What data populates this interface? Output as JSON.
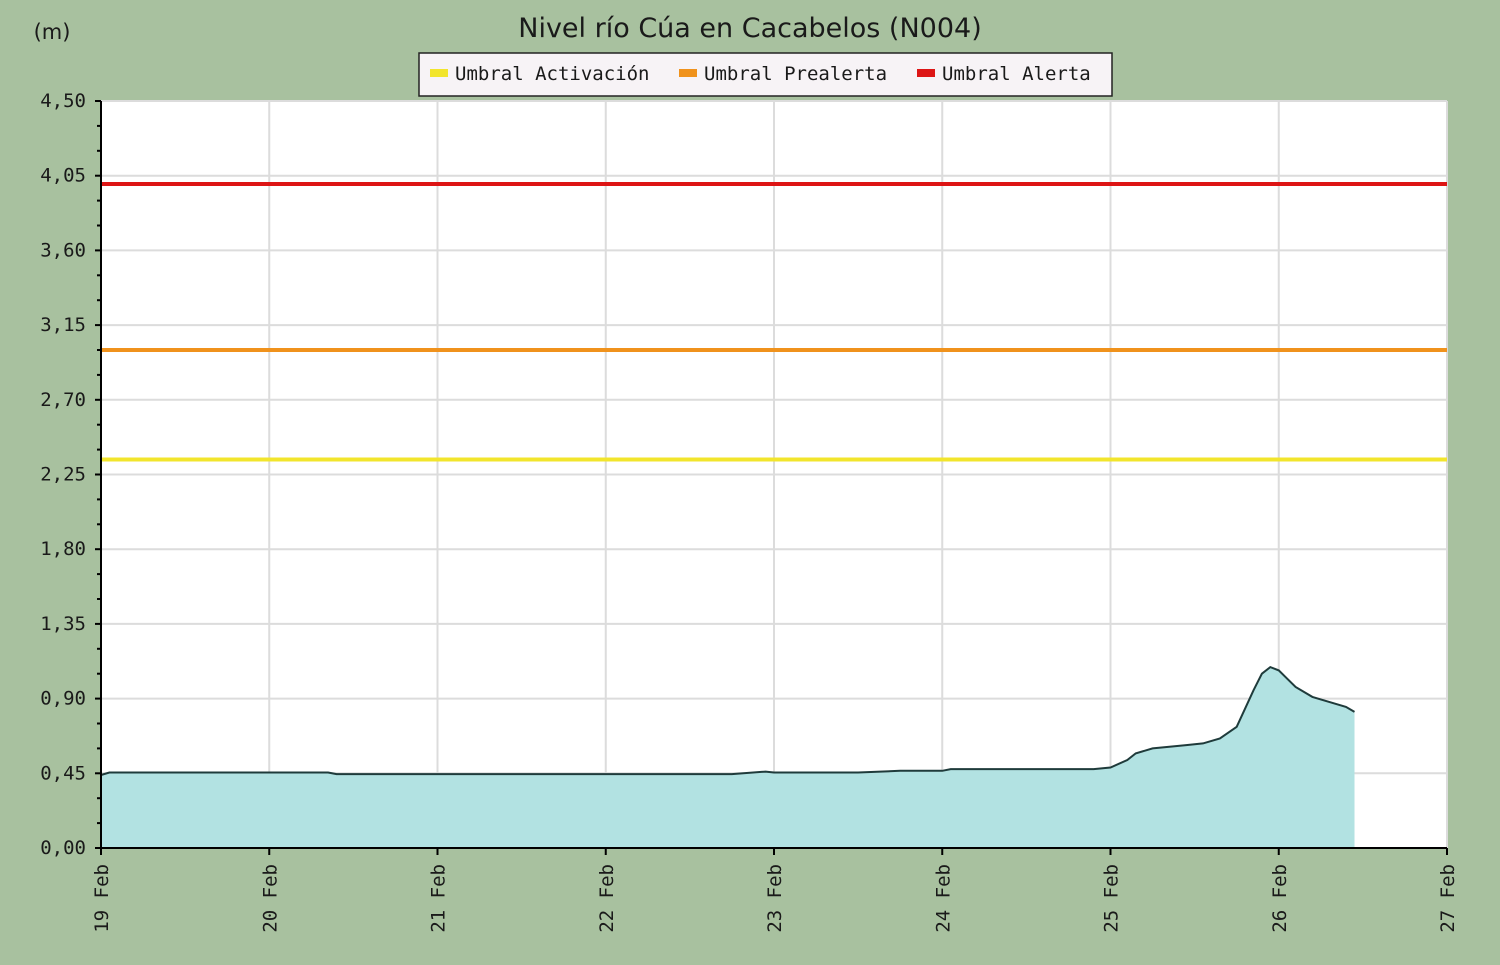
{
  "chart_data": {
    "type": "area",
    "title": "Nivel río Cúa en Cacabelos  (N004)",
    "ylabel": "(m)",
    "xlabel": "",
    "x_range": [
      "19 Feb",
      "27 Feb"
    ],
    "x_ticks": [
      "19 Feb",
      "20 Feb",
      "21 Feb",
      "22 Feb",
      "23 Feb",
      "24 Feb",
      "25 Feb",
      "26 Feb",
      "27 Feb"
    ],
    "y_ticks": [
      "0,00",
      "0,45",
      "0,90",
      "1,35",
      "1,80",
      "2,25",
      "2,70",
      "3,15",
      "3,60",
      "4,05",
      "4,50"
    ],
    "ylim": [
      0,
      4.5
    ],
    "grid": true,
    "legend_position": "top-center",
    "thresholds": [
      {
        "name": "Umbral Activación",
        "value": 2.34,
        "color": "#f2e52c"
      },
      {
        "name": "Umbral Prealerta",
        "value": 3.0,
        "color": "#f0921c"
      },
      {
        "name": "Umbral Alerta",
        "value": 4.0,
        "color": "#dd1515"
      }
    ],
    "series": [
      {
        "fill_color": "#b2e2e2",
        "line_color": "#1f3b3b",
        "x_days": [
          0.0,
          0.05,
          0.5,
          1.0,
          1.35,
          1.4,
          2.0,
          2.5,
          3.0,
          3.5,
          3.75,
          3.95,
          4.0,
          4.5,
          4.75,
          5.0,
          5.05,
          5.5,
          5.9,
          6.0,
          6.1,
          6.15,
          6.25,
          6.35,
          6.45,
          6.55,
          6.65,
          6.75,
          6.85,
          6.9,
          6.95,
          7.0,
          7.05,
          7.1,
          7.2,
          7.3,
          7.4,
          7.45
        ],
        "values": [
          0.44,
          0.455,
          0.455,
          0.455,
          0.455,
          0.445,
          0.445,
          0.445,
          0.445,
          0.445,
          0.445,
          0.46,
          0.455,
          0.455,
          0.465,
          0.465,
          0.475,
          0.475,
          0.475,
          0.485,
          0.53,
          0.57,
          0.6,
          0.61,
          0.62,
          0.63,
          0.66,
          0.73,
          0.95,
          1.05,
          1.09,
          1.07,
          1.02,
          0.97,
          0.91,
          0.88,
          0.85,
          0.82
        ]
      }
    ]
  }
}
